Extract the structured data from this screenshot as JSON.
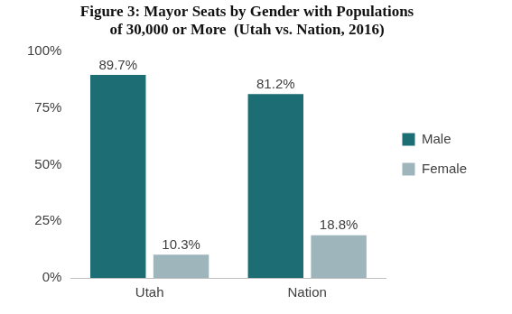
{
  "chart_data": {
    "type": "bar",
    "title": [
      "Figure 3: Mayor Seats by Gender with Populations",
      "of 30,000 or More  (Utah vs. Nation, 2016)"
    ],
    "categories": [
      "Utah",
      "Nation"
    ],
    "series": [
      {
        "name": "Male",
        "color": "#1c6d74",
        "values": [
          89.7,
          81.2
        ],
        "value_labels": [
          "89.7%",
          "81.2%"
        ]
      },
      {
        "name": "Female",
        "color": "#9db5bb",
        "values": [
          10.3,
          18.8
        ],
        "value_labels": [
          "10.3%",
          "18.8%"
        ]
      }
    ],
    "ylim": [
      0,
      100
    ],
    "yticks": [
      {
        "value": 0,
        "label": "0%"
      },
      {
        "value": 25,
        "label": "25%"
      },
      {
        "value": 50,
        "label": "50%"
      },
      {
        "value": 75,
        "label": "75%"
      },
      {
        "value": 100,
        "label": "100%"
      }
    ],
    "grid": false,
    "legend": "right",
    "data_labels": true
  }
}
